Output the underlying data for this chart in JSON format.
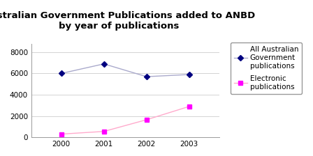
{
  "title": "Australian Government Publications added to ANBD\nby year of publications",
  "years": [
    2000,
    2001,
    2002,
    2003
  ],
  "all_pubs": [
    6000,
    6900,
    5700,
    5900
  ],
  "elec_pubs": [
    300,
    550,
    1650,
    2900
  ],
  "all_marker_color": "#000080",
  "all_line_color": "#aaaacc",
  "elec_marker_color": "#ff00ff",
  "elec_line_color": "#ffaacc",
  "all_label": "All Australian\nGovernment\npublications",
  "elec_label": "Electronic\npublications",
  "ylim": [
    0,
    8800
  ],
  "yticks": [
    0,
    2000,
    4000,
    6000,
    8000
  ],
  "xlim": [
    1999.3,
    2003.7
  ],
  "background_color": "#ffffff",
  "title_fontsize": 9.5,
  "legend_fontsize": 7.5,
  "tick_fontsize": 7.5
}
